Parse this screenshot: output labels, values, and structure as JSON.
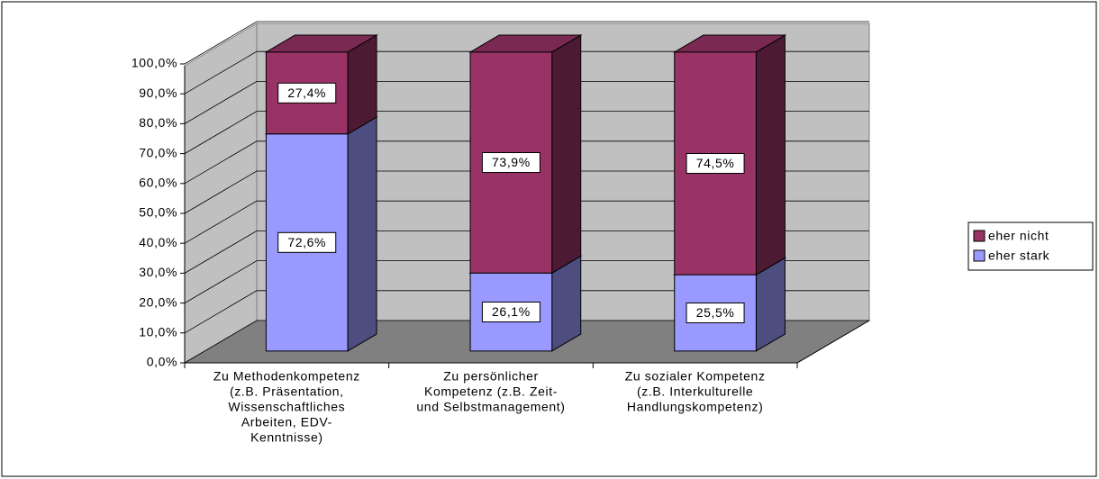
{
  "chart_data": {
    "type": "bar3d_stacked",
    "categories": [
      [
        "Zu Methodenkompetenz",
        "(z.B. Präsentation,",
        "Wissenschaftliches",
        "Arbeiten, EDV-",
        "Kenntnisse)"
      ],
      [
        "Zu persönlicher",
        "Kompetenz (z.B. Zeit-",
        "und Selbstmanagement)"
      ],
      [
        "Zu sozialer Kompetenz",
        "(z.B. Interkulturelle",
        "Handlungskompetenz)"
      ]
    ],
    "series": [
      {
        "name": "eher stark",
        "color": "#9999ff",
        "values": [
          72.6,
          26.1,
          25.5
        ],
        "value_labels": [
          "72,6%",
          "26,1%",
          "25,5%"
        ]
      },
      {
        "name": "eher nicht",
        "color": "#993366",
        "values": [
          27.4,
          73.9,
          74.5
        ],
        "value_labels": [
          "27,4%",
          "73,9%",
          "74,5%"
        ]
      }
    ],
    "ylim": [
      0,
      100
    ],
    "yticks": [
      {
        "value": 0,
        "label": "0,0%"
      },
      {
        "value": 10,
        "label": "10,0%"
      },
      {
        "value": 20,
        "label": "20,0%"
      },
      {
        "value": 30,
        "label": "30,0%"
      },
      {
        "value": 40,
        "label": "40,0%"
      },
      {
        "value": 50,
        "label": "50,0%"
      },
      {
        "value": 60,
        "label": "60,0%"
      },
      {
        "value": 70,
        "label": "70,0%"
      },
      {
        "value": 80,
        "label": "80,0%"
      },
      {
        "value": 90,
        "label": "90,0%"
      },
      {
        "value": 100,
        "label": "100,0%"
      }
    ],
    "grid": true,
    "legend": "right"
  }
}
